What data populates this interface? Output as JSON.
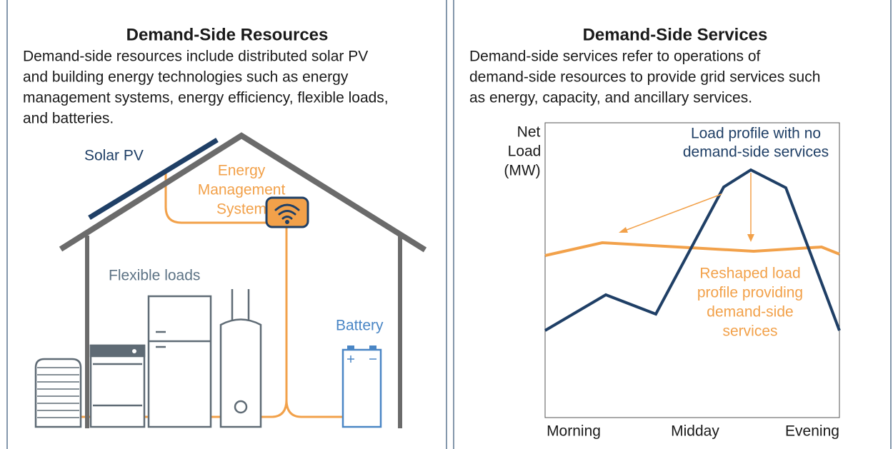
{
  "left_panel": {
    "title": "Demand-Side Resources",
    "description_lines": [
      "Demand-side resources include distributed solar PV",
      "and building energy technologies such as energy",
      "management systems, energy efficiency, flexible loads,",
      "and batteries."
    ],
    "labels": {
      "solar": "Solar PV",
      "ems_lines": [
        "Energy",
        "Management",
        "System"
      ],
      "flexible": "Flexible loads",
      "battery": "Battery"
    }
  },
  "right_panel": {
    "title": "Demand-Side Services",
    "description_lines": [
      "Demand-side services refer to operations of",
      "demand-side resources to provide grid services such",
      "as energy, capacity, and ancillary services."
    ],
    "y_label_lines": [
      "Net",
      "Load",
      "(MW)"
    ],
    "x_labels": [
      "Morning",
      "Midday",
      "Evening"
    ],
    "baseline_annotation_lines": [
      "Load profile with no",
      "demand-side services"
    ],
    "reshaped_annotation_lines": [
      "Reshaped load",
      "profile providing",
      "demand-side",
      "services"
    ]
  }
}
